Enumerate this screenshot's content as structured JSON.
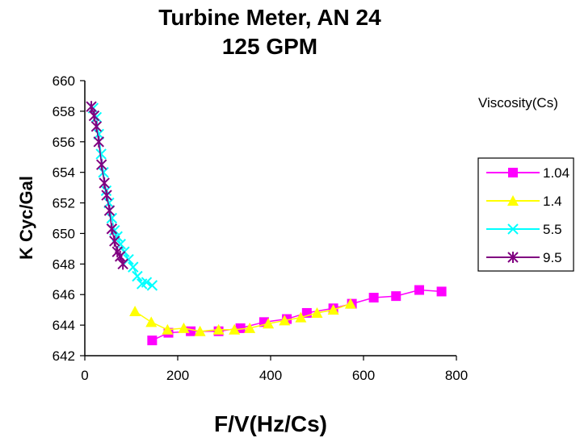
{
  "chart_data": {
    "type": "scatter",
    "title": "Turbine Meter, AN 24",
    "subtitle": "125 GPM",
    "xlabel": "F/V(Hz/Cs)",
    "ylabel": "K Cyc/Gal",
    "xlim": [
      0,
      800
    ],
    "ylim": [
      642,
      660
    ],
    "xticks": [
      "0",
      "200",
      "400",
      "600",
      "800"
    ],
    "yticks": [
      "642",
      "644",
      "646",
      "648",
      "650",
      "652",
      "654",
      "656",
      "658",
      "660"
    ],
    "grid": false,
    "legend_title": "Viscosity(Cs)",
    "legend_position": "right",
    "series": [
      {
        "name": "1.04",
        "color": "#ff00ff",
        "marker": "square",
        "x": [
          145,
          180,
          228,
          288,
          335,
          386,
          435,
          478,
          535,
          575,
          622,
          670,
          720,
          768
        ],
        "y": [
          643.0,
          643.5,
          643.6,
          643.6,
          643.8,
          644.2,
          644.4,
          644.8,
          645.1,
          645.4,
          645.8,
          645.9,
          646.3,
          646.2
        ]
      },
      {
        "name": "1.4",
        "color": "#ffff00",
        "marker": "triangle",
        "x": [
          108,
          143,
          178,
          213,
          248,
          288,
          322,
          355,
          395,
          430,
          465,
          500,
          535,
          572
        ],
        "y": [
          644.9,
          644.2,
          643.7,
          643.8,
          643.6,
          643.7,
          643.7,
          643.8,
          644.1,
          644.3,
          644.5,
          644.8,
          645.0,
          645.4
        ]
      },
      {
        "name": "5.5",
        "color": "#00ffff",
        "marker": "x",
        "x": [
          18,
          25,
          30,
          35,
          40,
          46,
          52,
          58,
          64,
          70,
          77,
          85,
          94,
          104,
          113,
          123,
          133,
          145
        ],
        "y": [
          658.2,
          657.6,
          656.5,
          655.2,
          654.0,
          652.8,
          652.0,
          651.0,
          650.2,
          649.8,
          649.3,
          648.8,
          648.3,
          647.8,
          647.2,
          646.7,
          646.8,
          646.6
        ]
      },
      {
        "name": "9.5",
        "color": "#800080",
        "marker": "star",
        "x": [
          14,
          20,
          25,
          30,
          36,
          42,
          47,
          53,
          58,
          64,
          70,
          76,
          82
        ],
        "y": [
          658.3,
          657.7,
          657.0,
          656.0,
          654.5,
          653.3,
          652.5,
          651.5,
          650.3,
          649.5,
          648.8,
          648.5,
          648.0
        ]
      }
    ]
  }
}
